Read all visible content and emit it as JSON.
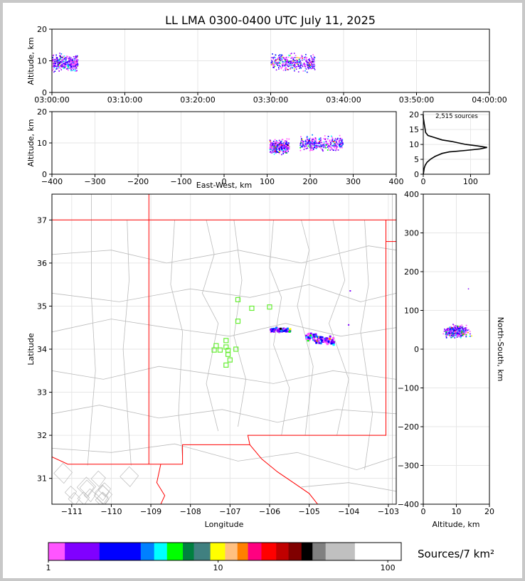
{
  "title": "LL LMA 0300-0400 UTC July 11, 2025",
  "colors": {
    "density": [
      "#ff55ff",
      "#8000ff",
      "#0000ff",
      "#0080ff",
      "#00ffff",
      "#00ff00",
      "#008040",
      "#408080",
      "#ffff00",
      "#ffc080",
      "#ff8000",
      "#ff0080",
      "#ff0000",
      "#c00000",
      "#800000",
      "#000000",
      "#808080",
      "#c0c0c0",
      "#ffffff"
    ],
    "state_border": "#ff0000",
    "county": "#bbbbbb",
    "station": "#66ee33"
  },
  "chart_data": [
    {
      "type": "scatter",
      "name": "time-height",
      "ylabel": "Altitude, km",
      "xlim": [
        "03:00:00",
        "04:00:00"
      ],
      "ylim": [
        0,
        20
      ],
      "xticks": [
        "03:00:00",
        "03:10:00",
        "03:20:00",
        "03:30:00",
        "03:40:00",
        "03:50:00",
        "04:00:00"
      ],
      "yticks": [
        "0",
        "10",
        "20"
      ],
      "clusters": [
        {
          "t_start_min": 0,
          "t_end_min": 3.5,
          "alt_center": 9.5,
          "alt_spread": 3.5
        },
        {
          "t_start_min": 30,
          "t_end_min": 36,
          "alt_center": 9.5,
          "alt_spread": 3.5
        }
      ]
    },
    {
      "type": "scatter",
      "name": "east-west-altitude",
      "xlabel": "East-West, km",
      "ylabel": "Altitude, km",
      "xlim": [
        -400,
        400
      ],
      "ylim": [
        0,
        20
      ],
      "xticks": [
        "−400",
        "−300",
        "−200",
        "−100",
        "0",
        "100",
        "200",
        "300",
        "400"
      ],
      "yticks": [
        "0",
        "10",
        "20"
      ],
      "clusters": [
        {
          "x_min": 105,
          "x_max": 150,
          "alt_center": 9,
          "alt_spread": 3
        },
        {
          "x_min": 175,
          "x_max": 275,
          "alt_center": 10,
          "alt_spread": 3
        }
      ]
    },
    {
      "type": "line",
      "name": "altitude-histogram",
      "annotation": "2,515 sources",
      "xlim": [
        0,
        140
      ],
      "ylim": [
        0,
        21
      ],
      "xticks": [
        "0",
        "100"
      ],
      "yticks": [
        "0",
        "5",
        "10",
        "15",
        "20"
      ],
      "altitude_km": [
        0,
        1,
        2,
        3,
        4,
        5,
        6,
        7,
        7.5,
        8,
        8.5,
        9,
        9.5,
        10,
        10.5,
        11,
        11.5,
        12,
        12.5,
        13,
        14,
        15,
        16,
        17,
        18,
        19,
        20
      ],
      "count": [
        0,
        1,
        2,
        4,
        8,
        15,
        25,
        40,
        55,
        90,
        120,
        135,
        115,
        90,
        75,
        60,
        40,
        30,
        20,
        10,
        5,
        4,
        3,
        2,
        1,
        0,
        0
      ]
    },
    {
      "type": "scatter",
      "name": "plan-view",
      "xlabel": "Longitude",
      "ylabel": "Latitude",
      "xlim": [
        -111.5,
        -102.8
      ],
      "ylim": [
        30.4,
        37.6
      ],
      "xticks": [
        "−111",
        "−110",
        "−109",
        "−108",
        "−107",
        "−106",
        "−105",
        "−104",
        "−103"
      ],
      "yticks": [
        "31",
        "32",
        "33",
        "34",
        "35",
        "36",
        "37"
      ],
      "stations": [
        [
          -106.8,
          35.15
        ],
        [
          -106.45,
          34.95
        ],
        [
          -106.0,
          34.98
        ],
        [
          -106.8,
          34.65
        ],
        [
          -107.1,
          34.2
        ],
        [
          -107.35,
          34.08
        ],
        [
          -107.1,
          34.05
        ],
        [
          -107.4,
          33.98
        ],
        [
          -107.25,
          33.98
        ],
        [
          -107.05,
          33.97
        ],
        [
          -106.85,
          34.0
        ],
        [
          -107.05,
          33.88
        ],
        [
          -107.0,
          33.75
        ],
        [
          -107.1,
          33.63
        ]
      ],
      "clusters": [
        {
          "lon_min": -106.0,
          "lon_max": -105.5,
          "lat_center": 34.47,
          "lat_spread": 0.08
        },
        {
          "lon_min": -105.1,
          "lon_max": -104.4,
          "lat_center": 34.3,
          "lat_spread": 0.12
        }
      ]
    },
    {
      "type": "scatter",
      "name": "altitude-north-south",
      "xlabel": "Altitude, km",
      "ylabel": "North-South, km",
      "xlim": [
        0,
        20
      ],
      "ylim": [
        -400,
        400
      ],
      "xticks": [
        "0",
        "10",
        "20"
      ],
      "yticks": [
        "−400",
        "−300",
        "−200",
        "−100",
        "0",
        "100",
        "200",
        "300",
        "400"
      ],
      "clusters": [
        {
          "alt_center": 10,
          "alt_spread": 5,
          "ns_center": 47,
          "ns_spread": 20
        }
      ]
    },
    {
      "type": "heatmap",
      "name": "colorbar",
      "label": "Sources/7 km²",
      "scale": "log",
      "range": [
        1,
        120
      ],
      "ticks": [
        "1",
        "10",
        "100"
      ]
    }
  ]
}
